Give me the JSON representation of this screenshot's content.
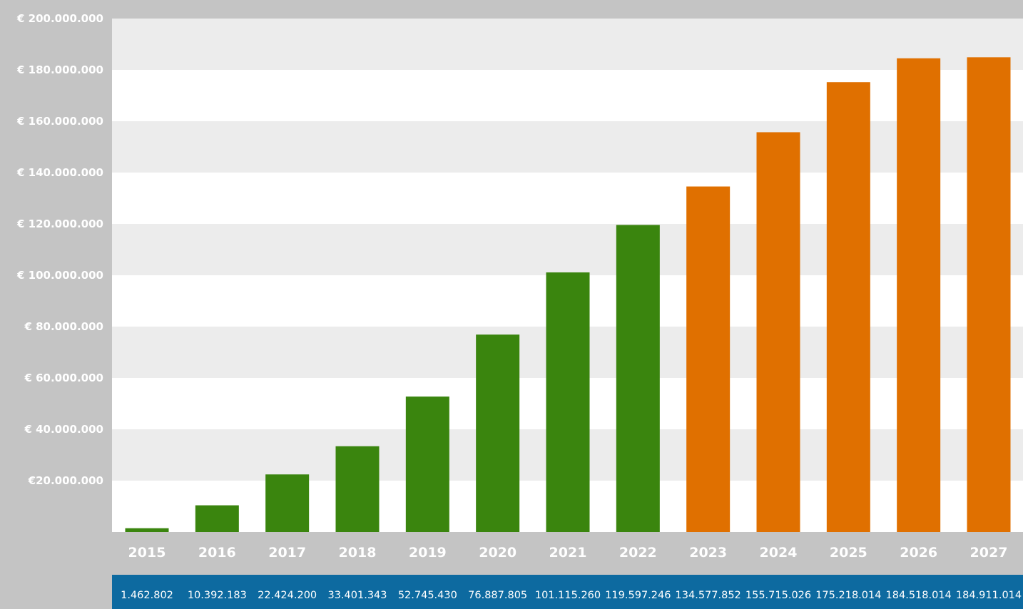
{
  "chart_data": {
    "type": "bar",
    "categories": [
      "2015",
      "2016",
      "2017",
      "2018",
      "2019",
      "2020",
      "2021",
      "2022",
      "2023",
      "2024",
      "2025",
      "2026",
      "2027"
    ],
    "values": [
      1462802,
      10392183,
      22424200,
      33401343,
      52745430,
      76887805,
      101115260,
      119597246,
      134577852,
      155715026,
      175218014,
      184518014,
      184911014
    ],
    "value_labels": [
      "1.462.802",
      "10.392.183",
      "22.424.200",
      "33.401.343",
      "52.745.430",
      "76.887.805",
      "101.115.260",
      "119.597.246",
      "134.577.852",
      "155.715.026",
      "175.218.014",
      "184.518.014",
      "184.911.014"
    ],
    "bar_colors": [
      "#3a850e",
      "#3a850e",
      "#3a850e",
      "#3a850e",
      "#3a850e",
      "#3a850e",
      "#3a850e",
      "#3a850e",
      "#e07000",
      "#e07000",
      "#e07000",
      "#e07000",
      "#e07000"
    ],
    "yticks": [
      {
        "value": 20000000,
        "label": "€20.000.000"
      },
      {
        "value": 40000000,
        "label": "€ 40.000.000"
      },
      {
        "value": 60000000,
        "label": "€ 60.000.000"
      },
      {
        "value": 80000000,
        "label": "€ 80.000.000"
      },
      {
        "value": 100000000,
        "label": "€ 100.000.000"
      },
      {
        "value": 120000000,
        "label": "€ 120.000.000"
      },
      {
        "value": 140000000,
        "label": "€ 140.000.000"
      },
      {
        "value": 160000000,
        "label": "€ 160.000.000"
      },
      {
        "value": 180000000,
        "label": "€ 180.000.000"
      },
      {
        "value": 200000000,
        "label": "€ 200.000.000"
      }
    ],
    "ylim": [
      0,
      200000000
    ],
    "grid": "horizontal alternating bands",
    "title": "",
    "xlabel": "",
    "ylabel": ""
  },
  "colors": {
    "outer_background": "#c4c4c4",
    "band_light": "#ececec",
    "band_white": "#ffffff",
    "value_strip": "#0d6aa0",
    "label_text": "#ffffff"
  }
}
